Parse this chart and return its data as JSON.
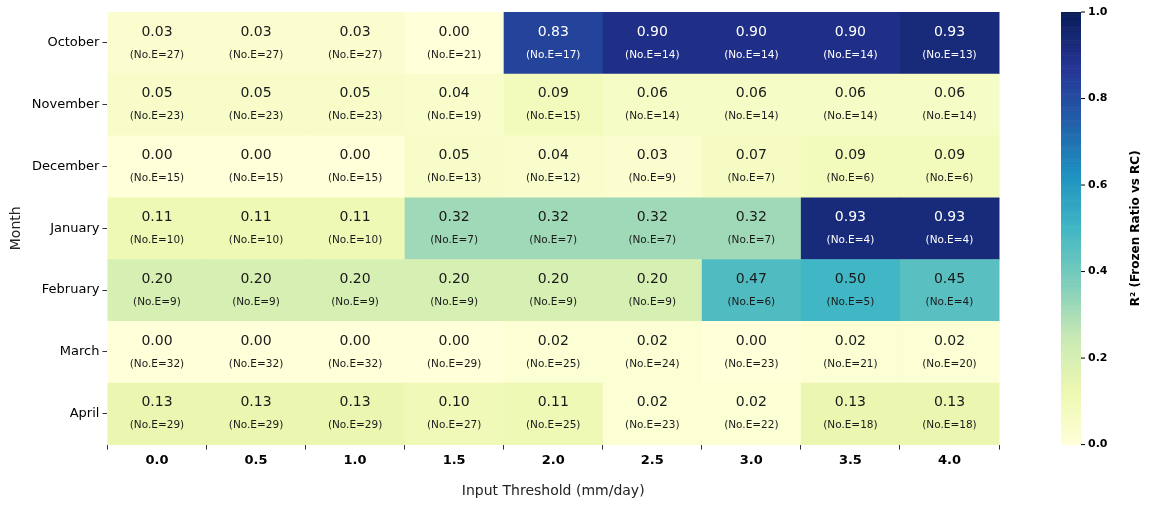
{
  "chart_data": {
    "type": "heatmap",
    "xlabel": "Input Threshold (mm/day)",
    "ylabel": "Month",
    "clabel": "R² (Frozen Ratio vs RC)",
    "categories": [
      "0.0",
      "0.5",
      "1.0",
      "1.5",
      "2.0",
      "2.5",
      "3.0",
      "3.5",
      "4.0"
    ],
    "y_categories": [
      "October",
      "November",
      "December",
      "January",
      "February",
      "March",
      "April"
    ],
    "cells": [
      [
        0.03,
        0.03,
        0.03,
        0.0,
        0.83,
        0.9,
        0.9,
        0.9,
        0.93
      ],
      [
        0.05,
        0.05,
        0.05,
        0.04,
        0.09,
        0.06,
        0.06,
        0.06,
        0.06
      ],
      [
        0.0,
        0.0,
        0.0,
        0.05,
        0.04,
        0.03,
        0.07,
        0.09,
        0.09
      ],
      [
        0.11,
        0.11,
        0.11,
        0.32,
        0.32,
        0.32,
        0.32,
        0.93,
        0.93
      ],
      [
        0.2,
        0.2,
        0.2,
        0.2,
        0.2,
        0.2,
        0.47,
        0.5,
        0.45
      ],
      [
        0.0,
        0.0,
        0.0,
        0.0,
        0.02,
        0.02,
        0.0,
        0.02,
        0.02
      ],
      [
        0.13,
        0.13,
        0.13,
        0.1,
        0.11,
        0.02,
        0.02,
        0.13,
        0.13
      ]
    ],
    "cell_labels": [
      [
        "0.03\n(No.E=27)",
        "0.03\n(No.E=27)",
        "0.03\n(No.E=27)",
        "0.00\n(No.E=21)",
        "0.83\n(No.E=17)",
        "0.90\n(No.E=14)",
        "0.90\n(No.E=14)",
        "0.90\n(No.E=14)",
        "0.93\n(No.E=13)"
      ],
      [
        "0.05\n(No.E=23)",
        "0.05\n(No.E=23)",
        "0.05\n(No.E=23)",
        "0.04\n(No.E=19)",
        "0.09\n(No.E=15)",
        "0.06\n(No.E=14)",
        "0.06\n(No.E=14)",
        "0.06\n(No.E=14)",
        "0.06\n(No.E=14)"
      ],
      [
        "0.00\n(No.E=15)",
        "0.00\n(No.E=15)",
        "0.00\n(No.E=15)",
        "0.05\n(No.E=13)",
        "0.04\n(No.E=12)",
        "0.03\n(No.E=9)",
        "0.07\n(No.E=7)",
        "0.09\n(No.E=6)",
        "0.09\n(No.E=6)"
      ],
      [
        "0.11\n(No.E=10)",
        "0.11\n(No.E=10)",
        "0.11\n(No.E=10)",
        "0.32\n(No.E=7)",
        "0.32\n(No.E=7)",
        "0.32\n(No.E=7)",
        "0.32\n(No.E=7)",
        "0.93\n(No.E=4)",
        "0.93\n(No.E=4)"
      ],
      [
        "0.20\n(No.E=9)",
        "0.20\n(No.E=9)",
        "0.20\n(No.E=9)",
        "0.20\n(No.E=9)",
        "0.20\n(No.E=9)",
        "0.20\n(No.E=9)",
        "0.47\n(No.E=6)",
        "0.50\n(No.E=5)",
        "0.45\n(No.E=4)"
      ],
      [
        "0.00\n(No.E=32)",
        "0.00\n(No.E=32)",
        "0.00\n(No.E=32)",
        "0.00\n(No.E=29)",
        "0.02\n(No.E=25)",
        "0.02\n(No.E=24)",
        "0.00\n(No.E=23)",
        "0.02\n(No.E=21)",
        "0.02\n(No.E=20)"
      ],
      [
        "0.13\n(No.E=29)",
        "0.13\n(No.E=29)",
        "0.13\n(No.E=29)",
        "0.10\n(No.E=27)",
        "0.11\n(No.E=25)",
        "0.02\n(No.E=23)",
        "0.02\n(No.E=22)",
        "0.13\n(No.E=18)",
        "0.13\n(No.E=18)"
      ]
    ],
    "clim": [
      0,
      1
    ],
    "cticks": [
      {
        "value": 0,
        "label": "0.0"
      },
      {
        "value": 0.2,
        "label": "0.2"
      },
      {
        "value": 0.4,
        "label": "0.4"
      },
      {
        "value": 0.6,
        "label": "0.6"
      },
      {
        "value": 0.8,
        "label": "0.8"
      },
      {
        "value": 1,
        "label": "1.0"
      }
    ]
  }
}
